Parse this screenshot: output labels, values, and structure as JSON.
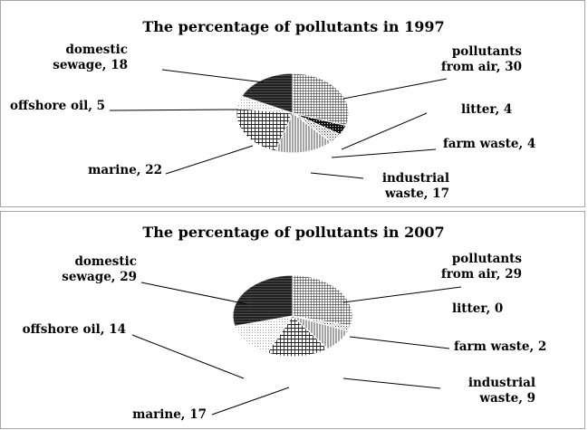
{
  "chart_data": [
    {
      "type": "pie",
      "title": "The percentage of pollutants in 1997",
      "slices": [
        {
          "label_lines": [
            "pollutants",
            "from air, 30"
          ],
          "name": "pollutants from air",
          "value": 30,
          "pattern": "grid-fine"
        },
        {
          "label_lines": [
            "litter, 4"
          ],
          "name": "litter",
          "value": 4,
          "pattern": "dark-check"
        },
        {
          "label_lines": [
            "farm waste, 4"
          ],
          "name": "farm waste",
          "value": 4,
          "pattern": "dots"
        },
        {
          "label_lines": [
            "industrial",
            "waste, 17"
          ],
          "name": "industrial waste",
          "value": 17,
          "pattern": "vlines"
        },
        {
          "label_lines": [
            "marine, 22"
          ],
          "name": "marine",
          "value": 22,
          "pattern": "grid-coarse"
        },
        {
          "label_lines": [
            "offshore oil, 5"
          ],
          "name": "offshore oil",
          "value": 5,
          "pattern": "light-dots"
        },
        {
          "label_lines": [
            "domestic",
            "sewage, 18"
          ],
          "name": "domestic sewage",
          "value": 18,
          "pattern": "dense-dark"
        }
      ]
    },
    {
      "type": "pie",
      "title": "The percentage of pollutants in 2007",
      "slices": [
        {
          "label_lines": [
            "pollutants",
            "from air, 29"
          ],
          "name": "pollutants from air",
          "value": 29,
          "pattern": "grid-fine"
        },
        {
          "label_lines": [
            "litter, 0"
          ],
          "name": "litter",
          "value": 0,
          "pattern": "dark-check"
        },
        {
          "label_lines": [
            "farm waste, 2"
          ],
          "name": "farm waste",
          "value": 2,
          "pattern": "dots"
        },
        {
          "label_lines": [
            "industrial",
            "waste, 9"
          ],
          "name": "industrial waste",
          "value": 9,
          "pattern": "vlines"
        },
        {
          "label_lines": [
            "marine, 17"
          ],
          "name": "marine",
          "value": 17,
          "pattern": "grid-coarse"
        },
        {
          "label_lines": [
            "offshore oil, 14"
          ],
          "name": "offshore oil",
          "value": 14,
          "pattern": "light-dots"
        },
        {
          "label_lines": [
            "domestic",
            "sewage, 29"
          ],
          "name": "domestic sewage",
          "value": 29,
          "pattern": "dense-dark"
        }
      ]
    }
  ]
}
